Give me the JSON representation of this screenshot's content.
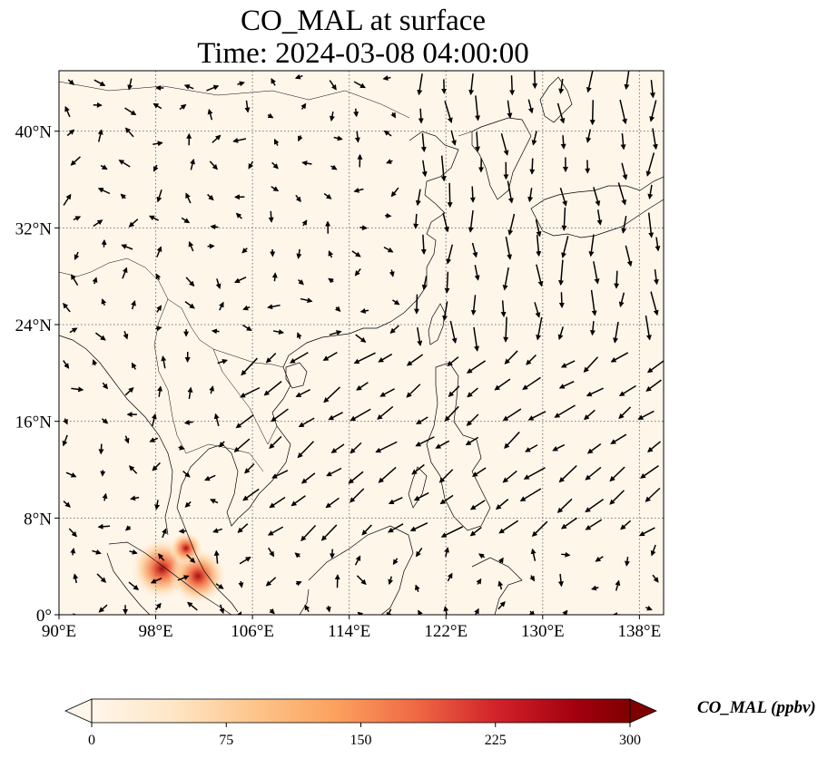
{
  "title": {
    "line1": "CO_MAL at surface",
    "line2": "Time: 2024-03-08 04:00:00"
  },
  "map": {
    "projection": "PlateCarree",
    "lon_range": [
      90,
      140
    ],
    "lat_range": [
      0,
      45
    ],
    "background_color": "#fff6ea",
    "gridlines": "dotted",
    "lon_ticks": [
      {
        "value": 90,
        "label": "90°E"
      },
      {
        "value": 98,
        "label": "98°E"
      },
      {
        "value": 106,
        "label": "106°E"
      },
      {
        "value": 114,
        "label": "114°E"
      },
      {
        "value": 122,
        "label": "122°E"
      },
      {
        "value": 130,
        "label": "130°E"
      },
      {
        "value": 138,
        "label": "138°E"
      }
    ],
    "lat_ticks": [
      {
        "value": 0,
        "label": "0°"
      },
      {
        "value": 8,
        "label": "8°N"
      },
      {
        "value": 16,
        "label": "16°N"
      },
      {
        "value": 24,
        "label": "24°N"
      },
      {
        "value": 32,
        "label": "32°N"
      },
      {
        "value": 40,
        "label": "40°N"
      }
    ],
    "hotspots": [
      {
        "lon": 98.5,
        "lat": 3.8,
        "value": 250
      },
      {
        "lon": 101.5,
        "lat": 3.2,
        "value": 220
      },
      {
        "lon": 100.5,
        "lat": 5.5,
        "value": 90
      }
    ]
  },
  "colorbar": {
    "label": "CO_MAL (ppbv)",
    "min": 0,
    "max": 300,
    "extend": "both",
    "ticks": [
      {
        "value": 0,
        "label": "0"
      },
      {
        "value": 75,
        "label": "75"
      },
      {
        "value": 150,
        "label": "150"
      },
      {
        "value": 225,
        "label": "225"
      },
      {
        "value": 300,
        "label": "300"
      }
    ],
    "colors": [
      "#fff6ea",
      "#fdd9a8",
      "#fdae6b",
      "#f16913",
      "#d94801",
      "#a50f15",
      "#67000d"
    ]
  }
}
